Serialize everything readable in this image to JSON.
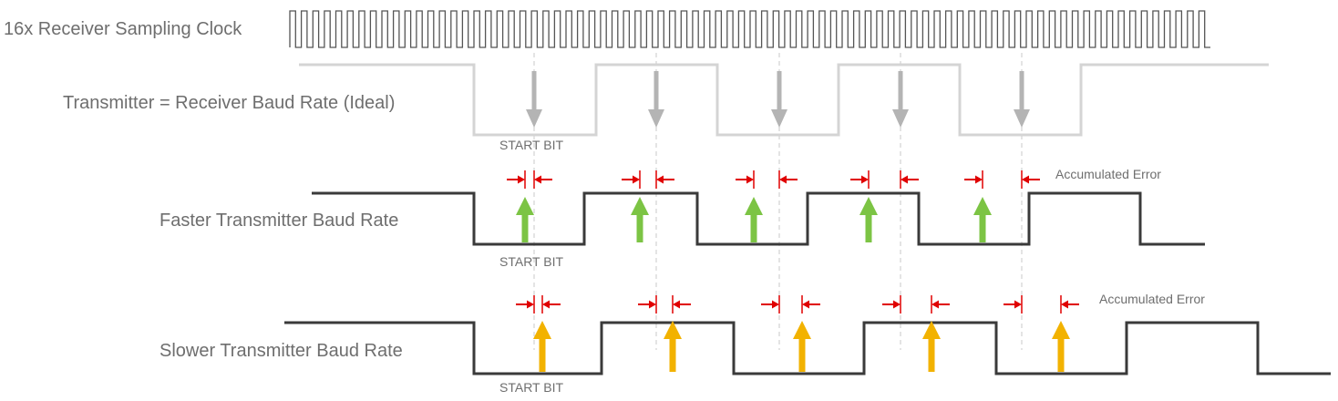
{
  "labels": {
    "clock": "16x Receiver Sampling Clock",
    "ideal": "Transmitter = Receiver Baud Rate (Ideal)",
    "faster": "Faster Transmitter Baud Rate",
    "slower": "Slower Transmitter Baud Rate",
    "start_bit": "START BIT",
    "accumulated_error": "Accumulated Error"
  },
  "clock": {
    "pulses": 80
  },
  "colors": {
    "clock": "#555555",
    "ideal_wave": "#d4d4d4",
    "ideal_arrow": "#b4b4b4",
    "tx_wave": "#3a3a3a",
    "faster_arrow": "#7cc444",
    "slower_arrow": "#f2b200",
    "error_marker": "#e00000",
    "guide": "#c8c8c8"
  },
  "sample_points": 5
}
